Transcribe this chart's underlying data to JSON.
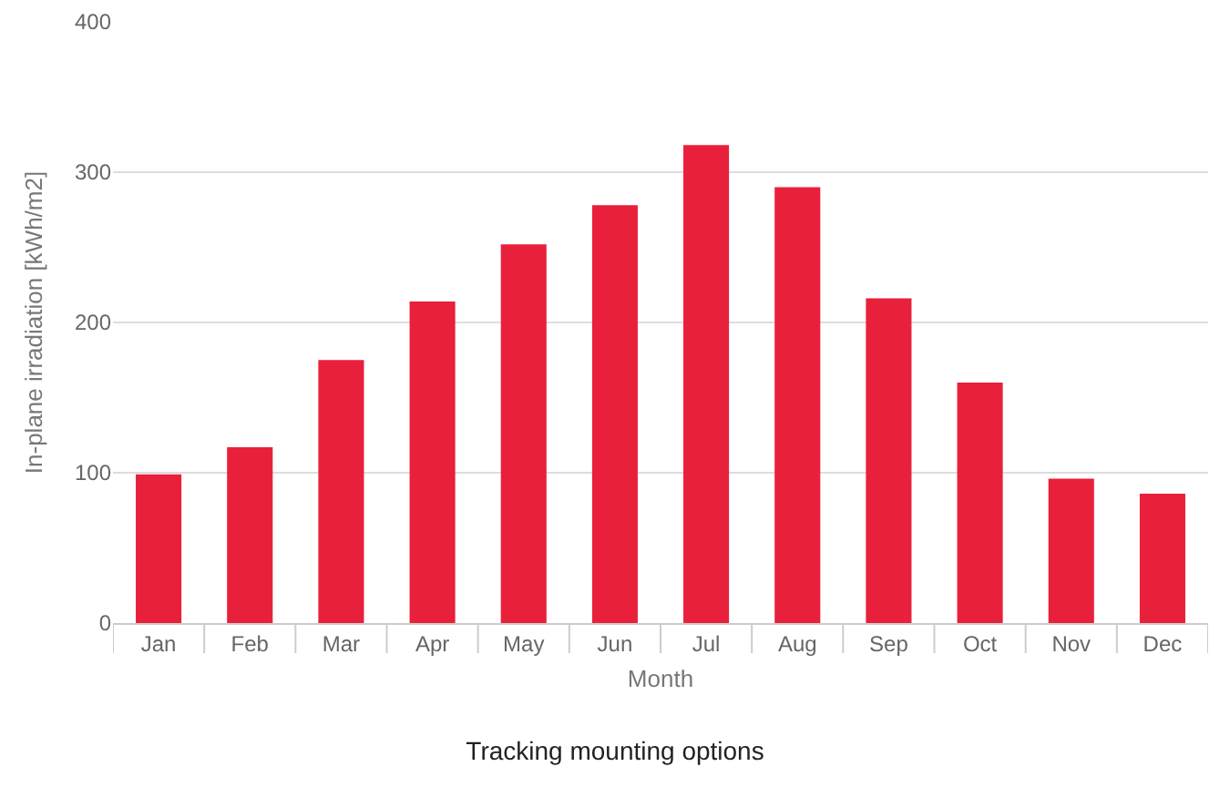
{
  "chart_data": {
    "type": "bar",
    "title": "Tracking mounting options",
    "xlabel": "Month",
    "ylabel": "In-plane irradiation [kWh/m2]",
    "categories": [
      "Jan",
      "Feb",
      "Mar",
      "Apr",
      "May",
      "Jun",
      "Jul",
      "Aug",
      "Sep",
      "Oct",
      "Nov",
      "Dec"
    ],
    "values": [
      99,
      117,
      175,
      214,
      252,
      278,
      318,
      290,
      216,
      160,
      96,
      86
    ],
    "color": "#e8203c",
    "ylim": [
      0,
      400
    ],
    "yticks": [
      0,
      100,
      200,
      300,
      400
    ],
    "grid": "y",
    "legend": false
  }
}
